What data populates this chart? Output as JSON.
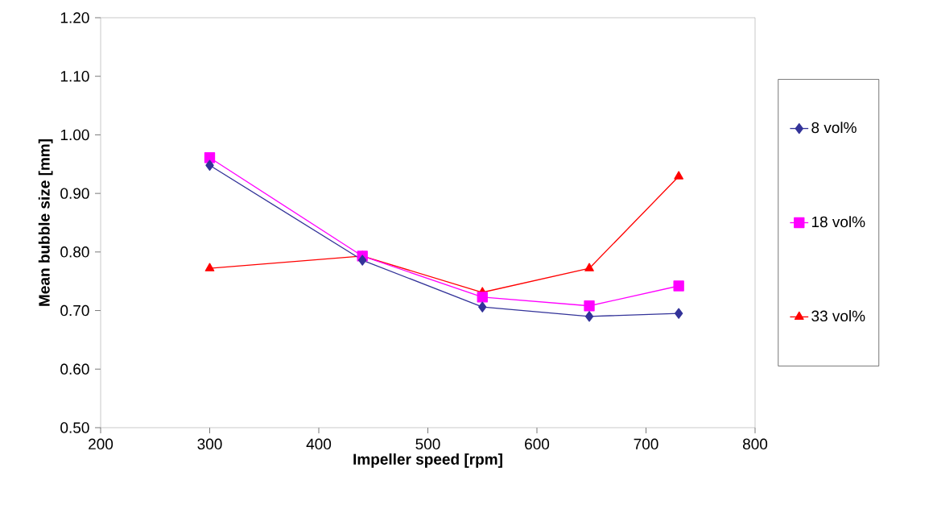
{
  "chart_data": {
    "type": "line",
    "xlabel": "Impeller speed [rpm]",
    "ylabel": "Mean bubble size [mm]",
    "x": [
      300,
      440,
      550,
      648,
      730
    ],
    "series": [
      {
        "name": "8 vol%",
        "color": "#333399",
        "marker": "diamond",
        "values": [
          0.948,
          0.786,
          0.706,
          0.69,
          0.695
        ]
      },
      {
        "name": "18 vol%",
        "color": "#ff00ff",
        "marker": "square",
        "values": [
          0.961,
          0.793,
          0.723,
          0.708,
          0.742
        ]
      },
      {
        "name": "33 vol%",
        "color": "#ff0000",
        "marker": "triangle",
        "values": [
          0.772,
          0.793,
          0.731,
          0.772,
          0.929
        ]
      }
    ],
    "xlim": [
      200,
      800
    ],
    "xticks": [
      200,
      300,
      400,
      500,
      600,
      700,
      800
    ],
    "ylim": [
      0.5,
      1.2
    ],
    "yticks": [
      {
        "value": 0.5,
        "label": "0.50"
      },
      {
        "value": 0.6,
        "label": "0.60"
      },
      {
        "value": 0.7,
        "label": "0.70"
      },
      {
        "value": 0.8,
        "label": "0.80"
      },
      {
        "value": 0.9,
        "label": "0.90"
      },
      {
        "value": 1.0,
        "label": "1.00"
      },
      {
        "value": 1.1,
        "label": "1.10"
      },
      {
        "value": 1.2,
        "label": "1.20"
      }
    ],
    "grid": false,
    "legend": "right",
    "line_style": "solid"
  }
}
